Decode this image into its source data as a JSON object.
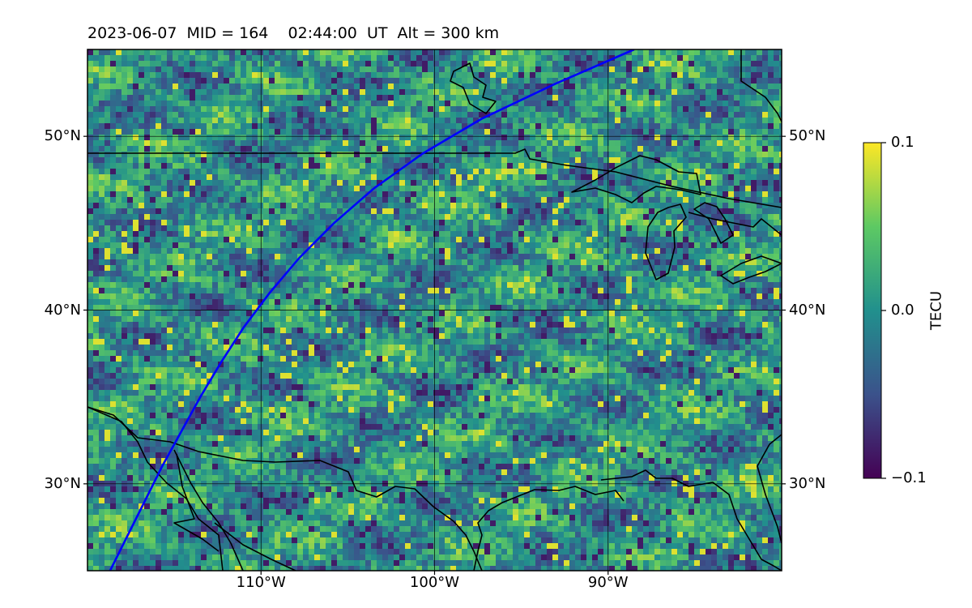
{
  "title": "2023-06-07  MID = 164    02:44:00  UT  Alt = 300 km",
  "colors": {
    "track": "#0000ff",
    "coastline": "#000000",
    "grid": "#000000",
    "colormap": "viridis"
  },
  "map": {
    "projection": "plate-carree",
    "lon_range": [
      -120,
      -80
    ],
    "lat_range": [
      25,
      55
    ],
    "lat_ticks": [
      {
        "value": 50,
        "label": "50°N"
      },
      {
        "value": 40,
        "label": "40°N"
      },
      {
        "value": 30,
        "label": "30°N"
      }
    ],
    "lon_ticks": [
      {
        "value": -110,
        "label": "110°W"
      },
      {
        "value": -100,
        "label": "100°W"
      },
      {
        "value": -90,
        "label": "90°W"
      }
    ],
    "gridlines": true,
    "track_lonlat": [
      [
        -118.7,
        25
      ],
      [
        -117.7,
        27
      ],
      [
        -116.7,
        29
      ],
      [
        -115.7,
        31
      ],
      [
        -114.6,
        33
      ],
      [
        -113.5,
        35
      ],
      [
        -112.3,
        37
      ],
      [
        -111.0,
        39
      ],
      [
        -109.5,
        41
      ],
      [
        -107.8,
        43
      ],
      [
        -105.8,
        45
      ],
      [
        -103.5,
        47
      ],
      [
        -100.7,
        49
      ],
      [
        -97.3,
        51
      ],
      [
        -93.1,
        53
      ],
      [
        -88.5,
        55
      ]
    ]
  },
  "chart_data": {
    "type": "heatmap",
    "title": "2023-06-07  MID = 164    02:44:00  UT  Alt = 300 km",
    "xlabel": "",
    "ylabel": "",
    "xlim": [
      -120,
      -80
    ],
    "ylim": [
      25,
      55
    ],
    "colorbar": {
      "label": "TECU",
      "range": [
        -0.1,
        0.1
      ],
      "ticks": [
        {
          "value": 0.1,
          "label": "0.1"
        },
        {
          "value": 0.0,
          "label": "0.0"
        },
        {
          "value": -0.1,
          "label": "−0.1"
        }
      ]
    }
  }
}
